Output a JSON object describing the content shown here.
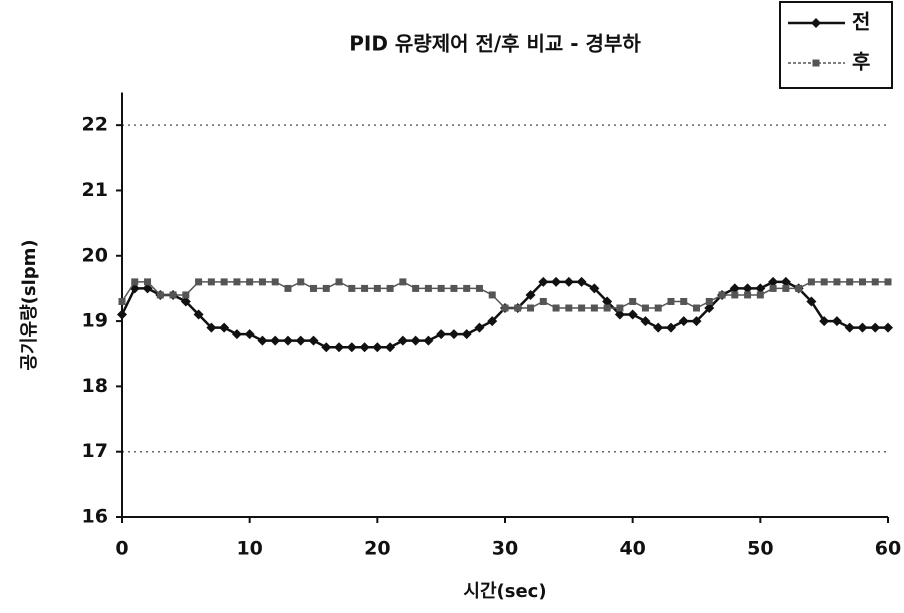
{
  "chart_data": {
    "type": "line",
    "title": "PID 유량제어 전/후 비교 - 경부하",
    "x_label": "시간(sec)",
    "y_label": "공기유량(slpm)",
    "x": [
      0,
      1,
      2,
      3,
      4,
      5,
      6,
      7,
      8,
      9,
      10,
      11,
      12,
      13,
      14,
      15,
      16,
      17,
      18,
      19,
      20,
      21,
      22,
      23,
      24,
      25,
      26,
      27,
      28,
      29,
      30,
      31,
      32,
      33,
      34,
      35,
      36,
      37,
      38,
      39,
      40,
      41,
      42,
      43,
      44,
      45,
      46,
      47,
      48,
      49,
      50,
      51,
      52,
      53,
      54,
      55,
      56,
      57,
      58,
      59,
      60
    ],
    "series": [
      {
        "name": "전",
        "color": "#111111",
        "marker": "diamond",
        "values": [
          19.1,
          19.5,
          19.5,
          19.4,
          19.4,
          19.3,
          19.1,
          18.9,
          18.9,
          18.8,
          18.8,
          18.7,
          18.7,
          18.7,
          18.7,
          18.7,
          18.6,
          18.6,
          18.6,
          18.6,
          18.6,
          18.6,
          18.7,
          18.7,
          18.7,
          18.8,
          18.8,
          18.8,
          18.9,
          19.0,
          19.2,
          19.2,
          19.4,
          19.6,
          19.6,
          19.6,
          19.6,
          19.5,
          19.3,
          19.1,
          19.1,
          19.0,
          18.9,
          18.9,
          19.0,
          19.0,
          19.2,
          19.4,
          19.5,
          19.5,
          19.5,
          19.6,
          19.6,
          19.5,
          19.3,
          19.0,
          19.0,
          18.9,
          18.9,
          18.9,
          18.9
        ]
      },
      {
        "name": "후",
        "color": "#555555",
        "marker": "square",
        "values": [
          19.3,
          19.6,
          19.6,
          19.4,
          19.4,
          19.4,
          19.6,
          19.6,
          19.6,
          19.6,
          19.6,
          19.6,
          19.6,
          19.5,
          19.6,
          19.5,
          19.5,
          19.6,
          19.5,
          19.5,
          19.5,
          19.5,
          19.6,
          19.5,
          19.5,
          19.5,
          19.5,
          19.5,
          19.5,
          19.4,
          19.2,
          19.2,
          19.2,
          19.3,
          19.2,
          19.2,
          19.2,
          19.2,
          19.2,
          19.2,
          19.3,
          19.2,
          19.2,
          19.3,
          19.3,
          19.2,
          19.3,
          19.4,
          19.4,
          19.4,
          19.4,
          19.5,
          19.5,
          19.5,
          19.6,
          19.6,
          19.6,
          19.6,
          19.6,
          19.6,
          19.6
        ]
      }
    ],
    "xlim": [
      0,
      60
    ],
    "xticks": [
      0,
      10,
      20,
      30,
      40,
      50,
      60
    ],
    "ylim": [
      16,
      22.5
    ],
    "yticks": [
      16,
      17,
      18,
      19,
      20,
      21,
      22
    ],
    "grid_lines": [
      17,
      22
    ],
    "legend": "top-right"
  }
}
